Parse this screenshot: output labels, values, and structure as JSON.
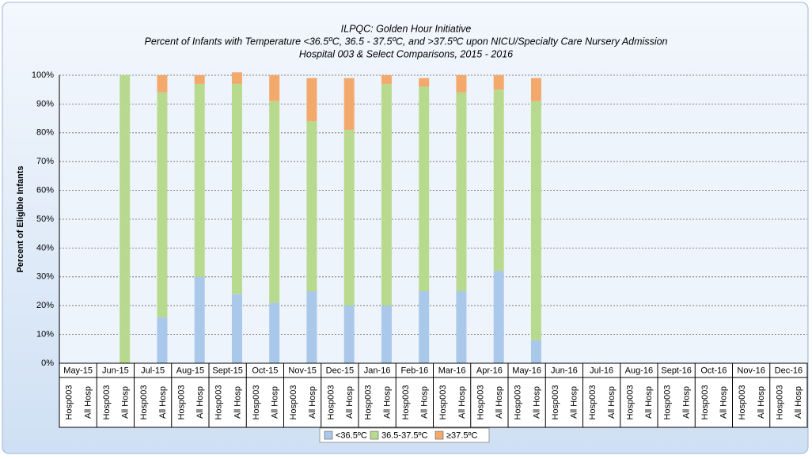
{
  "chart_data": {
    "type": "stacked-bar",
    "title": "ILPQC: Golden Hour Initiative",
    "subtitle": "Percent of Infants with Temperature <36.5ºC, 36.5 - 37.5ºC, and >37.5ºC upon NICU/Specialty Care Nursery Admission",
    "subtitle2": "Hospital 003 & Select Comparisons, 2015 - 2016",
    "y_label": "Percent of Eligible Infants",
    "categories": [
      "May-15",
      "Jun-15",
      "Jul-15",
      "Aug-15",
      "Sept-15",
      "Oct-15",
      "Nov-15",
      "Dec-15",
      "Jan-16",
      "Feb-16",
      "Mar-16",
      "Apr-16",
      "May-16",
      "Jun-16",
      "Jul-16",
      "Aug-16",
      "Sept-16",
      "Oct-16",
      "Nov-16",
      "Dec-16"
    ],
    "subcategories": [
      "Hosp003",
      "All Hosp"
    ],
    "series": [
      {
        "name": "<36.5ºC",
        "color": "#a9c8ea",
        "values": [
          [
            null,
            null
          ],
          [
            null,
            0
          ],
          [
            null,
            16
          ],
          [
            null,
            30
          ],
          [
            null,
            24
          ],
          [
            null,
            21
          ],
          [
            null,
            25
          ],
          [
            null,
            20
          ],
          [
            null,
            20
          ],
          [
            null,
            25
          ],
          [
            null,
            25
          ],
          [
            null,
            32
          ],
          [
            null,
            8
          ],
          [
            null,
            null
          ],
          [
            null,
            null
          ],
          [
            null,
            null
          ],
          [
            null,
            null
          ],
          [
            null,
            null
          ],
          [
            null,
            null
          ],
          [
            null,
            null
          ]
        ]
      },
      {
        "name": "36.5-37.5ºC",
        "color": "#b8da8f",
        "values": [
          [
            null,
            null
          ],
          [
            null,
            100
          ],
          [
            null,
            78
          ],
          [
            null,
            67
          ],
          [
            null,
            73
          ],
          [
            null,
            70
          ],
          [
            null,
            59
          ],
          [
            null,
            61
          ],
          [
            null,
            77
          ],
          [
            null,
            71
          ],
          [
            null,
            69
          ],
          [
            null,
            63
          ],
          [
            null,
            83
          ],
          [
            null,
            null
          ],
          [
            null,
            null
          ],
          [
            null,
            null
          ],
          [
            null,
            null
          ],
          [
            null,
            null
          ],
          [
            null,
            null
          ],
          [
            null,
            null
          ]
        ]
      },
      {
        "name": "≥37.5ºC",
        "color": "#f3a96c",
        "values": [
          [
            null,
            null
          ],
          [
            null,
            0
          ],
          [
            null,
            6
          ],
          [
            null,
            3
          ],
          [
            null,
            4
          ],
          [
            null,
            9
          ],
          [
            null,
            15
          ],
          [
            null,
            18
          ],
          [
            null,
            3
          ],
          [
            null,
            3
          ],
          [
            null,
            6
          ],
          [
            null,
            5
          ],
          [
            null,
            8
          ],
          [
            null,
            null
          ],
          [
            null,
            null
          ],
          [
            null,
            null
          ],
          [
            null,
            null
          ],
          [
            null,
            null
          ],
          [
            null,
            null
          ],
          [
            null,
            null
          ]
        ]
      }
    ],
    "ylim": [
      0,
      100
    ],
    "yticks": [
      {
        "value": 0,
        "label": "0%"
      },
      {
        "value": 10,
        "label": "10%"
      },
      {
        "value": 20,
        "label": "20%"
      },
      {
        "value": 30,
        "label": "30%"
      },
      {
        "value": 40,
        "label": "40%"
      },
      {
        "value": 50,
        "label": "50%"
      },
      {
        "value": 60,
        "label": "60%"
      },
      {
        "value": 70,
        "label": "70%"
      },
      {
        "value": 80,
        "label": "80%"
      },
      {
        "value": 90,
        "label": "90%"
      },
      {
        "value": 100,
        "label": "100%"
      }
    ],
    "grid": true
  }
}
